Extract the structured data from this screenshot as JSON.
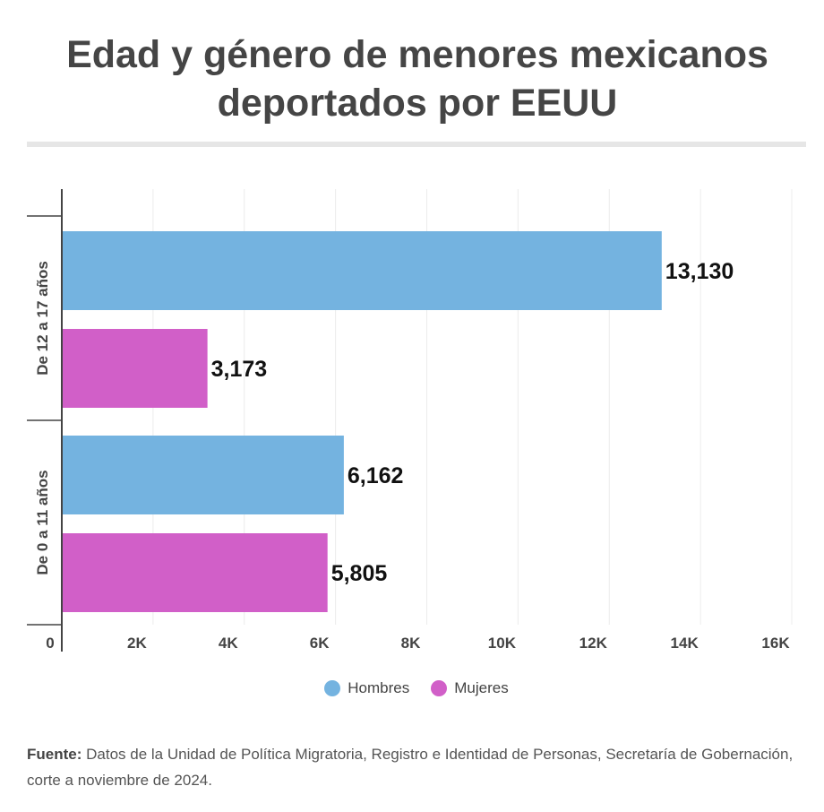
{
  "title_line1": "Edad y género de menores mexicanos",
  "title_line2": "deportados por EEUU",
  "colors": {
    "hombres": "#74b3e0",
    "mujeres": "#d15fc8"
  },
  "chart_data": {
    "type": "bar",
    "orientation": "horizontal",
    "categories": [
      "De 12 a 17 años",
      "De 0 a 11 años"
    ],
    "series": [
      {
        "name": "Hombres",
        "values": [
          13130,
          6162
        ],
        "labels": [
          "13,130",
          "6,162"
        ]
      },
      {
        "name": "Mujeres",
        "values": [
          3173,
          5805
        ],
        "labels": [
          "3,173",
          "5,805"
        ]
      }
    ],
    "xlim": [
      0,
      16000
    ],
    "xticks": [
      0,
      2000,
      4000,
      6000,
      8000,
      10000,
      12000,
      14000,
      16000
    ],
    "xtick_labels": [
      "0",
      "2K",
      "4K",
      "6K",
      "8K",
      "10K",
      "12K",
      "14K",
      "16K"
    ],
    "grid": true,
    "legend_position": "bottom"
  },
  "source_label": "Fuente:",
  "source_text": " Datos de la Unidad de Política Migratoria, Registro e Identidad de Personas, Secretaría de Gobernación, corte a noviembre de 2024."
}
